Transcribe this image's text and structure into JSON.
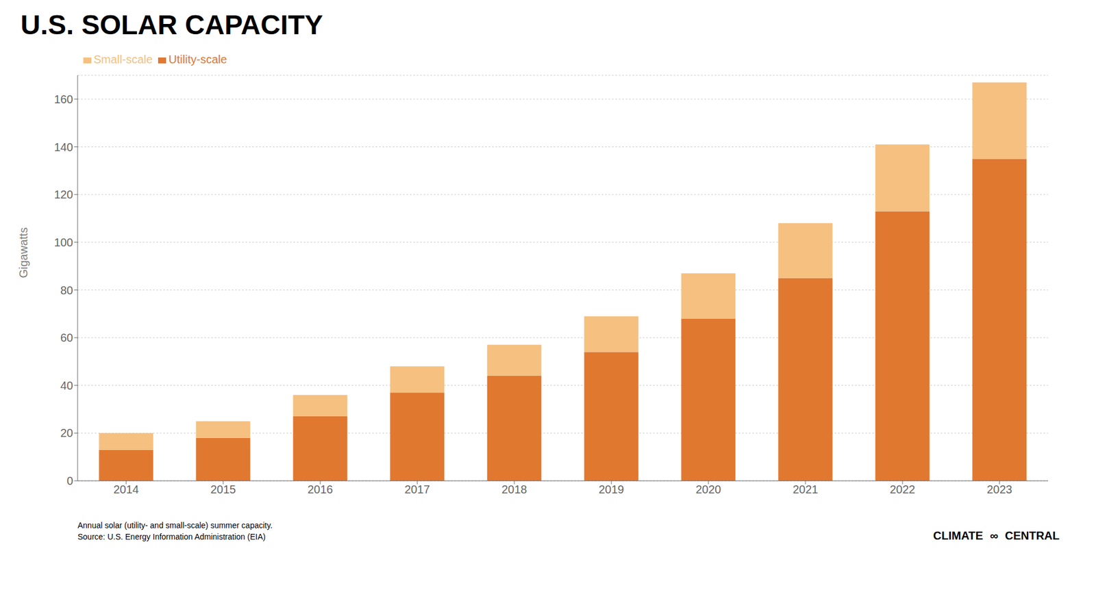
{
  "chart_data": {
    "type": "bar",
    "title": "U.S. SOLAR CAPACITY",
    "y_label": "Gigawatts",
    "stacked": true,
    "categories": [
      "2014",
      "2015",
      "2016",
      "2017",
      "2018",
      "2019",
      "2020",
      "2021",
      "2022",
      "2023"
    ],
    "series": [
      {
        "name": "Utility-scale",
        "color": "#E07830",
        "values": [
          13,
          18,
          27,
          37,
          44,
          54,
          68,
          85,
          113,
          135
        ]
      },
      {
        "name": "Small-scale",
        "color": "#F5C080",
        "values": [
          7,
          7,
          9,
          11,
          13,
          15,
          19,
          23,
          28,
          32
        ]
      }
    ],
    "ylim": [
      0,
      170
    ],
    "yticks": [
      0,
      20,
      40,
      60,
      80,
      100,
      120,
      140,
      160
    ],
    "grid": true,
    "legend": "upper-left",
    "annotations": [
      "Annual solar (utility- and small-scale) summer capacity.",
      "Source: U.S. Energy Information Administration (EIA)",
      "CLIMATE",
      "∞",
      "CENTRAL"
    ]
  }
}
